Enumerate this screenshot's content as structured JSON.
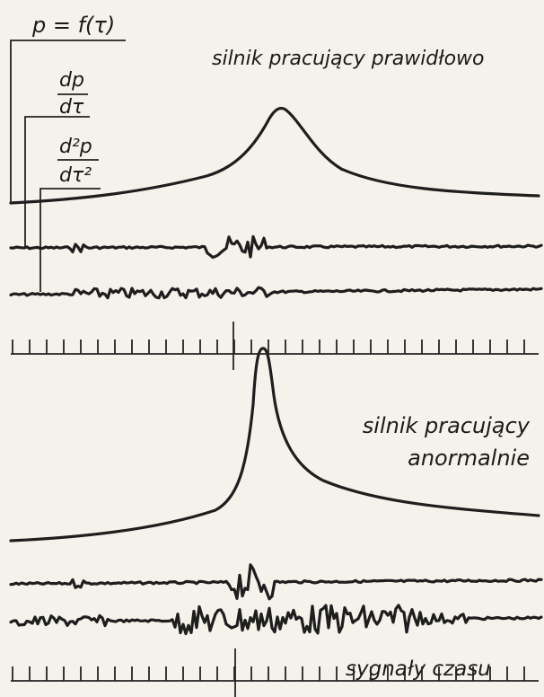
{
  "labels": {
    "signal": "p = f(τ)",
    "first_derivative": {
      "numerator": "dp",
      "denominator": "dτ"
    },
    "second_derivative": {
      "numerator": "d²p",
      "denominator": "dτ²"
    }
  },
  "panels": [
    {
      "caption_lines": [
        "silnik pracujący prawidłowo"
      ]
    },
    {
      "caption_lines": [
        "silnik pracujący",
        "anormalnie"
      ]
    }
  ],
  "time_signal_label": "sygnały czasu"
}
